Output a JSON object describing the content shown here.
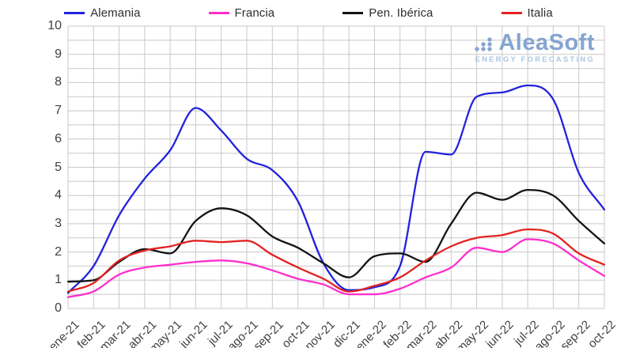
{
  "logo": {
    "name": "AleaSoft",
    "tagline": "ENERGY FORECASTING"
  },
  "axes": {
    "y_tick_labels": [
      "0",
      "1",
      "2",
      "3",
      "4",
      "5",
      "6",
      "7",
      "8",
      "9",
      "10"
    ]
  },
  "colors": {
    "grid": "#c8c8c8",
    "tick_label": "#3f3f3f",
    "background": "#ffffff",
    "logo_text": "#84a5d0",
    "logo_tagline": "#a9c6e0"
  },
  "chart_data": {
    "type": "line",
    "title": "",
    "xlabel": "",
    "ylabel": "",
    "ylim": [
      0,
      10
    ],
    "y_tick_step": 1,
    "grid": true,
    "grid_step_y": 0.5,
    "grid_step_x": 1,
    "legend_position": "top",
    "categories": [
      "ene-21",
      "feb-21",
      "mar-21",
      "abr-21",
      "may-21",
      "jun-21",
      "jul-21",
      "ago-21",
      "sep-21",
      "oct-21",
      "nov-21",
      "dic-21",
      "ene-22",
      "feb-22",
      "mar-22",
      "abr-22",
      "may-22",
      "jun-22",
      "jul-22",
      "ago-22",
      "sep-22",
      "oct-22"
    ],
    "series": [
      {
        "name": "Alemania",
        "color": "#2222dd",
        "values": [
          0.55,
          1.5,
          3.3,
          4.6,
          5.6,
          7.1,
          6.3,
          5.3,
          4.9,
          3.8,
          1.6,
          0.65,
          0.75,
          1.5,
          5.55,
          5.45,
          7.5,
          7.65,
          7.9,
          7.4,
          4.8,
          3.5
        ]
      },
      {
        "name": "Francia",
        "color": "#ff2ecc",
        "values": [
          0.4,
          0.6,
          1.2,
          1.45,
          1.55,
          1.65,
          1.7,
          1.6,
          1.35,
          1.05,
          0.85,
          0.5,
          0.5,
          0.7,
          1.1,
          1.45,
          2.15,
          2.0,
          2.45,
          2.3,
          1.7,
          1.15
        ]
      },
      {
        "name": "Pen. Ibérica",
        "color": "#141414",
        "values": [
          0.95,
          1.0,
          1.65,
          2.1,
          1.95,
          3.1,
          3.55,
          3.3,
          2.55,
          2.15,
          1.6,
          1.1,
          1.85,
          1.95,
          1.65,
          3.0,
          4.1,
          3.85,
          4.2,
          4.0,
          3.1,
          2.3
        ]
      },
      {
        "name": "Italia",
        "color": "#e32222",
        "values": [
          0.6,
          0.9,
          1.7,
          2.05,
          2.2,
          2.4,
          2.35,
          2.4,
          1.9,
          1.45,
          1.05,
          0.6,
          0.8,
          1.1,
          1.7,
          2.2,
          2.5,
          2.6,
          2.8,
          2.65,
          1.95,
          1.55
        ]
      }
    ]
  }
}
